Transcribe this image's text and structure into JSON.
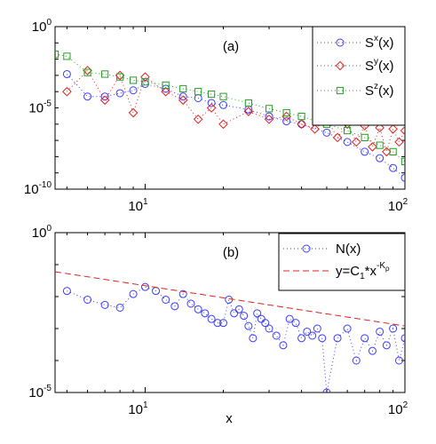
{
  "chart_data": [
    {
      "type": "scatter",
      "panel_label": "(a)",
      "scale": {
        "x": "log",
        "y": "log"
      },
      "xlim": [
        4.5,
        100
      ],
      "ylim": [
        1e-10,
        1
      ],
      "x_ticks": [
        {
          "value": 10,
          "base": "10",
          "exp": "1"
        },
        {
          "value": 100,
          "base": "10",
          "exp": "2"
        }
      ],
      "y_ticks": [
        {
          "value": 1,
          "base": "10",
          "exp": "0"
        },
        {
          "value": 1e-05,
          "base": "10",
          "exp": "-5"
        },
        {
          "value": 1e-10,
          "base": "10",
          "exp": "-10"
        }
      ],
      "legend_position": "top-right",
      "series": [
        {
          "name_base": "S",
          "name_sup": "x",
          "name_suffix": "(x)",
          "color": "#3b3bff",
          "marker": "circle",
          "line": "dotted",
          "x": [
            5,
            6,
            7,
            8,
            9,
            10,
            12,
            14,
            16,
            18,
            20,
            25,
            30,
            35,
            40,
            50,
            60,
            70,
            80,
            90,
            100
          ],
          "y": [
            0.0012,
            5e-05,
            5e-05,
            8e-05,
            0.00012,
            0.0003,
            0.00015,
            5e-05,
            4e-05,
            2e-05,
            1.5e-05,
            8e-06,
            3e-06,
            1.5e-06,
            1e-06,
            3e-07,
            8e-08,
            2e-08,
            8e-09,
            2e-09,
            5e-10
          ]
        },
        {
          "name_base": "S",
          "name_sup": "y",
          "name_suffix": "(x)",
          "color": "#e02020",
          "marker": "diamond",
          "line": "dotted",
          "x": [
            5,
            6,
            7,
            8,
            9,
            10,
            12,
            14,
            16,
            18,
            20,
            25,
            30,
            35,
            40,
            45,
            50,
            55,
            60,
            65,
            70,
            75,
            80,
            85,
            90,
            95,
            100
          ],
          "y": [
            0.0001,
            0.002,
            3e-05,
            0.001,
            5e-06,
            0.0008,
            0.0001,
            3e-05,
            2e-06,
            1e-05,
            1e-06,
            6e-06,
            2e-06,
            3e-06,
            1e-06,
            5e-07,
            2e-06,
            1.5e-07,
            1e-06,
            8e-08,
            8e-07,
            4e-08,
            6e-07,
            2e-08,
            5e-07,
            8e-08,
            4e-07
          ]
        },
        {
          "name_base": "S",
          "name_sup": "z",
          "name_suffix": "(x)",
          "color": "#22a022",
          "marker": "square",
          "line": "dotted",
          "x": [
            4.5,
            5,
            6,
            7,
            8,
            9,
            10,
            12,
            14,
            16,
            18,
            20,
            25,
            30,
            35,
            40,
            50,
            60,
            70,
            80,
            90,
            100
          ],
          "y": [
            0.02,
            0.015,
            0.0015,
            0.0012,
            0.0008,
            0.0005,
            0.0004,
            0.00025,
            0.00015,
            0.0001,
            7e-05,
            5e-05,
            2e-05,
            9e-06,
            5e-06,
            3e-06,
            1e-06,
            4e-07,
            1.5e-07,
            5e-08,
            2e-08,
            5e-09
          ]
        }
      ]
    },
    {
      "type": "scatter",
      "panel_label": "(b)",
      "scale": {
        "x": "log",
        "y": "log"
      },
      "xlim": [
        4.5,
        100
      ],
      "ylim": [
        1e-05,
        1
      ],
      "x_ticks": [
        {
          "value": 10,
          "base": "10",
          "exp": "1"
        },
        {
          "value": 100,
          "base": "10",
          "exp": "2"
        }
      ],
      "y_ticks": [
        {
          "value": 1,
          "base": "10",
          "exp": "0"
        },
        {
          "value": 1e-05,
          "base": "10",
          "exp": "-5"
        }
      ],
      "xlabel": "x",
      "legend_position": "top-right",
      "series": [
        {
          "name": "N(x)",
          "color": "#3b3bff",
          "marker": "circle",
          "line": "dotted",
          "x": [
            5,
            6,
            7,
            8,
            9,
            10,
            11,
            12,
            13,
            14,
            15,
            16,
            17,
            18,
            19,
            20,
            21,
            22,
            23,
            24,
            25,
            26,
            27,
            28,
            29,
            30,
            32,
            34,
            36,
            38,
            40,
            42,
            44,
            46,
            48,
            50,
            55,
            60,
            65,
            70,
            75,
            80,
            85,
            90,
            95,
            100
          ],
          "y": [
            0.015,
            0.008,
            0.0055,
            0.0045,
            0.012,
            0.02,
            0.015,
            0.008,
            0.005,
            0.012,
            0.006,
            0.004,
            0.003,
            0.002,
            0.0015,
            0.0015,
            0.008,
            0.003,
            0.004,
            0.0025,
            0.0012,
            0.0005,
            0.003,
            0.002,
            0.0015,
            0.001,
            0.0006,
            0.0003,
            0.002,
            0.0015,
            0.0005,
            0.0008,
            0.0006,
            0.001,
            0.0005,
            1e-05,
            0.0005,
            0.001,
            0.0001,
            0.0005,
            0.0002,
            0.0008,
            0.0003,
            0.001,
            0.0001,
            0.0005
          ]
        },
        {
          "name_base": "y=C",
          "name_sub": "1",
          "name_mid": "*x",
          "name_sup": "-K",
          "name_supsub": "ρ",
          "color": "#e02020",
          "line": "dashed",
          "x": [
            4.5,
            100
          ],
          "y": [
            0.06,
            0.0012
          ]
        }
      ]
    }
  ]
}
